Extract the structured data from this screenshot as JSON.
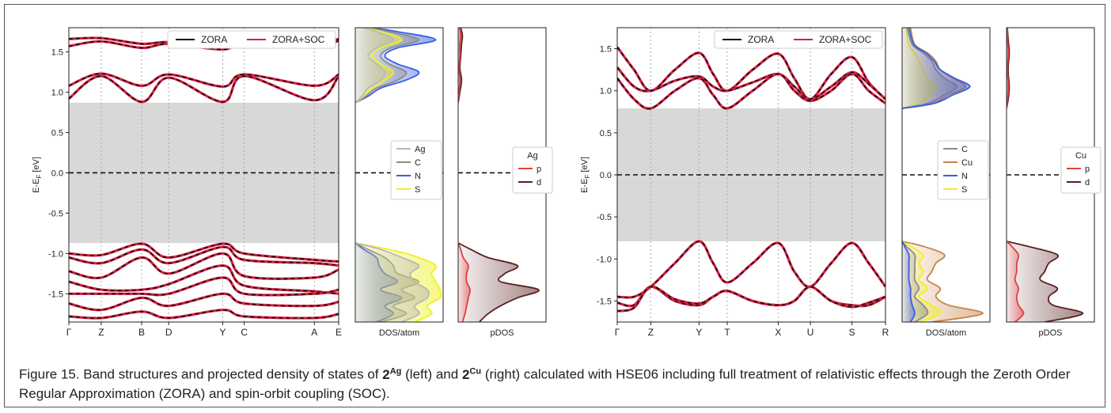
{
  "caption": {
    "prefix": "Figure 15. Band structures and projected density of states of ",
    "c1_num": "2",
    "c1_sup": "Ag",
    "mid": " (left) and ",
    "c2_num": "2",
    "c2_sup": "Cu",
    "suffix": " (right) calculated with HSE06 including full treatment of relativistic effects through the Zeroth Order Regular Approximation (ZORA) and spin-orbit coupling (SOC)."
  },
  "colors": {
    "zora": "#111111",
    "soc": "#d62040",
    "gap": "#d8d8d8",
    "Ag": "#b8b8b8",
    "C": "#8c8c8c",
    "Cu": "#c8844a",
    "N": "#3a5fe0",
    "S": "#f0f020",
    "p": "#e04040",
    "d": "#5a2020"
  },
  "chart_data": [
    {
      "type": "line",
      "panel": "band_structure_Ag",
      "ylabel": "E-E",
      "ylabel_sub": "F",
      "ylabel_unit": " [eV]",
      "ylim": [
        -1.85,
        1.8
      ],
      "yticks": [
        -1.5,
        -1.0,
        -0.5,
        0.0,
        0.5,
        1.0,
        1.5
      ],
      "ytick_labels": [
        "-1.5",
        "-1.0",
        "-0.5",
        "0.0",
        "0.5",
        "1.0",
        "1.5"
      ],
      "kpoints": [
        "Γ",
        "Z",
        "B",
        "D",
        "Y",
        "C",
        "A",
        "E"
      ],
      "kpos": [
        0,
        0.12,
        0.27,
        0.37,
        0.57,
        0.65,
        0.91,
        1.0
      ],
      "gap": [
        -0.87,
        0.87
      ],
      "fermi": 0.0,
      "legend": [
        "ZORA",
        "ZORA+SOC"
      ],
      "legend_position": "top-right",
      "series": [
        {
          "x": [
            0,
            0.12,
            0.27,
            0.37,
            0.57,
            0.65,
            0.91,
            1.0
          ],
          "y": [
            1.66,
            1.67,
            1.6,
            1.62,
            1.56,
            1.64,
            1.6,
            1.66
          ]
        },
        {
          "x": [
            0,
            0.12,
            0.27,
            0.37,
            0.57,
            0.65,
            0.91,
            1.0
          ],
          "y": [
            1.57,
            1.63,
            1.55,
            1.6,
            1.53,
            1.61,
            1.56,
            1.64
          ]
        },
        {
          "x": [
            0,
            0.12,
            0.27,
            0.37,
            0.57,
            0.65,
            0.91,
            1.0
          ],
          "y": [
            1.08,
            1.23,
            1.08,
            1.22,
            1.07,
            1.22,
            1.08,
            1.22
          ]
        },
        {
          "x": [
            0,
            0.12,
            0.27,
            0.37,
            0.57,
            0.65,
            0.91,
            1.0
          ],
          "y": [
            0.92,
            1.2,
            0.88,
            1.18,
            0.88,
            1.2,
            0.9,
            1.2
          ]
        },
        {
          "x": [
            0,
            0.12,
            0.27,
            0.37,
            0.57,
            0.65,
            0.91,
            1.0
          ],
          "y": [
            -1.0,
            -1.02,
            -0.88,
            -1.05,
            -0.88,
            -1.0,
            -1.08,
            -1.1
          ]
        },
        {
          "x": [
            0,
            0.12,
            0.27,
            0.37,
            0.57,
            0.65,
            0.91,
            1.0
          ],
          "y": [
            -1.05,
            -1.12,
            -0.95,
            -1.12,
            -0.92,
            -1.08,
            -1.12,
            -1.15
          ]
        },
        {
          "x": [
            0,
            0.12,
            0.27,
            0.37,
            0.57,
            0.65,
            0.91,
            1.0
          ],
          "y": [
            -1.22,
            -1.3,
            -1.05,
            -1.25,
            -1.0,
            -1.28,
            -1.3,
            -1.2
          ]
        },
        {
          "x": [
            0,
            0.12,
            0.27,
            0.37,
            0.57,
            0.65,
            0.91,
            1.0
          ],
          "y": [
            -1.35,
            -1.45,
            -1.45,
            -1.38,
            -1.15,
            -1.4,
            -1.47,
            -1.5
          ]
        },
        {
          "x": [
            0,
            0.12,
            0.27,
            0.37,
            0.57,
            0.65,
            0.91,
            1.0
          ],
          "y": [
            -1.5,
            -1.5,
            -1.5,
            -1.5,
            -1.3,
            -1.5,
            -1.5,
            -1.45
          ]
        },
        {
          "x": [
            0,
            0.12,
            0.27,
            0.37,
            0.57,
            0.65,
            0.91,
            1.0
          ],
          "y": [
            -1.62,
            -1.7,
            -1.55,
            -1.65,
            -1.5,
            -1.62,
            -1.65,
            -1.6
          ]
        },
        {
          "x": [
            0,
            0.12,
            0.27,
            0.37,
            0.57,
            0.65,
            0.91,
            1.0
          ],
          "y": [
            -1.78,
            -1.8,
            -1.72,
            -1.8,
            -1.7,
            -1.78,
            -1.8,
            -1.75
          ]
        }
      ]
    },
    {
      "type": "area",
      "panel": "dos_Ag",
      "xlabel": "DOS/atom",
      "ylim": [
        -1.85,
        1.8
      ],
      "legend": [
        "Ag",
        "C",
        "N",
        "S"
      ],
      "legend_position": "center-right",
      "energies": [
        -1.85,
        -1.75,
        -1.65,
        -1.55,
        -1.45,
        -1.35,
        -1.25,
        -1.15,
        -1.05,
        -0.95,
        -0.87,
        0.87,
        0.95,
        1.05,
        1.15,
        1.25,
        1.35,
        1.45,
        1.55,
        1.65,
        1.75,
        1.8
      ],
      "series": [
        {
          "name": "N",
          "values": [
            0.25,
            0.45,
            0.35,
            0.55,
            0.3,
            0.5,
            0.35,
            0.28,
            0.25,
            0.1,
            0,
            0,
            0.15,
            0.3,
            0.6,
            0.75,
            0.5,
            0.35,
            0.5,
            0.95,
            0.5,
            0.2
          ]
        },
        {
          "name": "C",
          "values": [
            0.3,
            0.6,
            0.45,
            0.7,
            0.55,
            0.75,
            0.5,
            0.45,
            0.35,
            0.15,
            0,
            0,
            0.12,
            0.25,
            0.5,
            0.6,
            0.4,
            0.3,
            0.42,
            0.75,
            0.4,
            0.18
          ]
        },
        {
          "name": "S",
          "values": [
            0.7,
            0.9,
            0.85,
            1.0,
            1.0,
            0.95,
            0.9,
            0.95,
            0.75,
            0.4,
            0,
            0,
            0.1,
            0.2,
            0.35,
            0.45,
            0.3,
            0.2,
            0.3,
            0.55,
            0.3,
            0.12
          ]
        },
        {
          "name": "Ag",
          "values": [
            0.55,
            0.75,
            0.7,
            0.85,
            0.85,
            0.7,
            0.65,
            0.75,
            0.55,
            0.3,
            0,
            0,
            0.08,
            0.15,
            0.3,
            0.35,
            0.25,
            0.15,
            0.25,
            0.45,
            0.25,
            0.1
          ]
        }
      ]
    },
    {
      "type": "area",
      "panel": "pdos_Ag",
      "xlabel": "pDOS",
      "ylim": [
        -1.85,
        1.8
      ],
      "legend_title": "Ag",
      "legend": [
        "p",
        "d"
      ],
      "legend_position": "center-right",
      "energies": [
        -1.85,
        -1.75,
        -1.65,
        -1.55,
        -1.45,
        -1.35,
        -1.25,
        -1.15,
        -1.05,
        -0.95,
        -0.87,
        0.87,
        1.0,
        1.15,
        1.3,
        1.45,
        1.6,
        1.7,
        1.8
      ],
      "series": [
        {
          "name": "d",
          "values": [
            0.25,
            0.35,
            0.5,
            0.7,
            0.95,
            0.5,
            0.55,
            0.7,
            0.35,
            0.15,
            0,
            0,
            0.02,
            0.04,
            0.02,
            0.03,
            0.04,
            0.05,
            0.03
          ]
        },
        {
          "name": "p",
          "values": [
            0.05,
            0.08,
            0.1,
            0.12,
            0.14,
            0.1,
            0.1,
            0.12,
            0.06,
            0.03,
            0,
            0,
            0.01,
            0.02,
            0.01,
            0.02,
            0.02,
            0.03,
            0.02
          ]
        }
      ]
    },
    {
      "type": "line",
      "panel": "band_structure_Cu",
      "ylabel": "E-E",
      "ylabel_sub": "F",
      "ylabel_unit": " [eV]",
      "ylim": [
        -1.75,
        1.75
      ],
      "yticks": [
        -1.5,
        -1.0,
        -0.5,
        0.0,
        0.5,
        1.0,
        1.5
      ],
      "ytick_labels": [
        "-1.5",
        "-1.0",
        "-0.5",
        "0.0",
        "0.5",
        "1.0",
        "1.5"
      ],
      "kpoints": [
        "Γ",
        "Z",
        "Y",
        "T",
        "X",
        "U",
        "S",
        "R"
      ],
      "kpos": [
        0,
        0.125,
        0.305,
        0.41,
        0.6,
        0.72,
        0.875,
        1.0
      ],
      "gap": [
        -0.79,
        0.79
      ],
      "fermi": 0.0,
      "legend": [
        "ZORA",
        "ZORA+SOC"
      ],
      "legend_position": "top-right",
      "series": [
        {
          "x": [
            0,
            0.0625,
            0.125,
            0.215,
            0.305,
            0.3575,
            0.41,
            0.505,
            0.6,
            0.66,
            0.72,
            0.7975,
            0.875,
            0.9375,
            1.0
          ],
          "y": [
            1.52,
            1.25,
            1.0,
            1.25,
            1.45,
            1.2,
            1.0,
            1.25,
            1.44,
            1.15,
            0.9,
            1.2,
            1.4,
            1.1,
            0.9
          ]
        },
        {
          "x": [
            0,
            0.0625,
            0.125,
            0.215,
            0.305,
            0.3575,
            0.41,
            0.505,
            0.6,
            0.66,
            0.72,
            0.7975,
            0.875,
            0.9375,
            1.0
          ],
          "y": [
            1.28,
            1.05,
            1.0,
            1.12,
            1.17,
            1.05,
            1.0,
            1.1,
            1.2,
            1.05,
            0.9,
            1.05,
            1.22,
            1.08,
            0.9
          ]
        },
        {
          "x": [
            0,
            0.0625,
            0.125,
            0.215,
            0.305,
            0.3575,
            0.41,
            0.505,
            0.6,
            0.66,
            0.72,
            0.7975,
            0.875,
            0.9375,
            1.0
          ],
          "y": [
            1.15,
            0.9,
            0.79,
            1.0,
            1.15,
            0.95,
            0.79,
            1.0,
            1.2,
            1.0,
            0.88,
            1.0,
            1.2,
            1.0,
            0.85
          ]
        },
        {
          "x": [
            0,
            0.0625,
            0.125,
            0.215,
            0.305,
            0.3575,
            0.41,
            0.505,
            0.6,
            0.66,
            0.72,
            0.7975,
            0.875,
            0.9375,
            1.0
          ],
          "y": [
            -1.45,
            -1.45,
            -1.33,
            -1.05,
            -0.79,
            -1.05,
            -1.28,
            -1.05,
            -0.81,
            -1.15,
            -1.33,
            -1.05,
            -0.81,
            -1.05,
            -1.33
          ]
        },
        {
          "x": [
            0,
            0.0625,
            0.125,
            0.215,
            0.305,
            0.3575,
            0.41,
            0.505,
            0.6,
            0.66,
            0.72,
            0.7975,
            0.875,
            0.9375,
            1.0
          ],
          "y": [
            -1.52,
            -1.55,
            -1.33,
            -1.5,
            -1.55,
            -1.45,
            -1.38,
            -1.5,
            -1.55,
            -1.5,
            -1.33,
            -1.5,
            -1.55,
            -1.55,
            -1.45
          ]
        },
        {
          "x": [
            0,
            0.0625,
            0.125,
            0.215,
            0.305,
            0.3575,
            0.41,
            0.505,
            0.6,
            0.66,
            0.72,
            0.7975,
            0.875,
            0.9375,
            1.0
          ],
          "y": [
            -1.62,
            -1.58,
            -1.33,
            -1.48,
            -1.53,
            -1.45,
            -1.38,
            -1.5,
            -1.55,
            -1.5,
            -1.33,
            -1.5,
            -1.57,
            -1.52,
            -1.45
          ]
        }
      ]
    },
    {
      "type": "area",
      "panel": "dos_Cu",
      "xlabel": "DOS/atom",
      "ylim": [
        -1.75,
        1.75
      ],
      "legend": [
        "C",
        "Cu",
        "N",
        "S"
      ],
      "legend_position": "center-right",
      "energies": [
        -1.75,
        -1.65,
        -1.55,
        -1.45,
        -1.35,
        -1.25,
        -1.15,
        -1.05,
        -0.95,
        -0.85,
        -0.79,
        0.79,
        0.85,
        0.95,
        1.05,
        1.15,
        1.25,
        1.35,
        1.45,
        1.55,
        1.75
      ],
      "series": [
        {
          "name": "Cu",
          "values": [
            0.35,
            0.95,
            0.55,
            0.4,
            0.45,
            0.3,
            0.35,
            0.4,
            0.5,
            0.25,
            0,
            0,
            0.35,
            0.55,
            0.75,
            0.6,
            0.45,
            0.4,
            0.3,
            0.15,
            0.1
          ]
        },
        {
          "name": "S",
          "values": [
            0.2,
            0.45,
            0.35,
            0.2,
            0.3,
            0.2,
            0.25,
            0.2,
            0.25,
            0.1,
            0,
            0,
            0.2,
            0.35,
            0.4,
            0.3,
            0.25,
            0.2,
            0.15,
            0.08,
            0.05
          ]
        },
        {
          "name": "C",
          "values": [
            0.15,
            0.3,
            0.25,
            0.15,
            0.2,
            0.15,
            0.15,
            0.15,
            0.15,
            0.05,
            0,
            0,
            0.3,
            0.5,
            0.65,
            0.5,
            0.4,
            0.35,
            0.25,
            0.12,
            0.06
          ]
        },
        {
          "name": "N",
          "values": [
            0.1,
            0.15,
            0.12,
            0.1,
            0.1,
            0.08,
            0.08,
            0.08,
            0.08,
            0.03,
            0,
            0,
            0.38,
            0.6,
            0.8,
            0.62,
            0.45,
            0.38,
            0.28,
            0.14,
            0.08
          ]
        }
      ]
    },
    {
      "type": "area",
      "panel": "pdos_Cu",
      "xlabel": "pDOS",
      "ylim": [
        -1.75,
        1.75
      ],
      "legend_title": "Cu",
      "legend": [
        "p",
        "d"
      ],
      "legend_position": "center-right",
      "energies": [
        -1.75,
        -1.65,
        -1.55,
        -1.45,
        -1.35,
        -1.25,
        -1.15,
        -1.05,
        -0.95,
        -0.85,
        -0.79,
        0.79,
        0.9,
        1.0,
        1.1,
        1.2,
        1.3,
        1.4,
        1.5,
        1.6,
        1.75
      ],
      "series": [
        {
          "name": "d",
          "values": [
            0.45,
            0.9,
            0.55,
            0.5,
            0.6,
            0.4,
            0.45,
            0.5,
            0.6,
            0.25,
            0,
            0,
            0.02,
            0.03,
            0.03,
            0.02,
            0.02,
            0.03,
            0.03,
            0.02,
            0.01
          ]
        },
        {
          "name": "p",
          "values": [
            0.1,
            0.2,
            0.14,
            0.12,
            0.14,
            0.1,
            0.12,
            0.12,
            0.14,
            0.06,
            0,
            0,
            0.01,
            0.02,
            0.02,
            0.01,
            0.01,
            0.02,
            0.02,
            0.01,
            0.01
          ]
        }
      ]
    }
  ]
}
